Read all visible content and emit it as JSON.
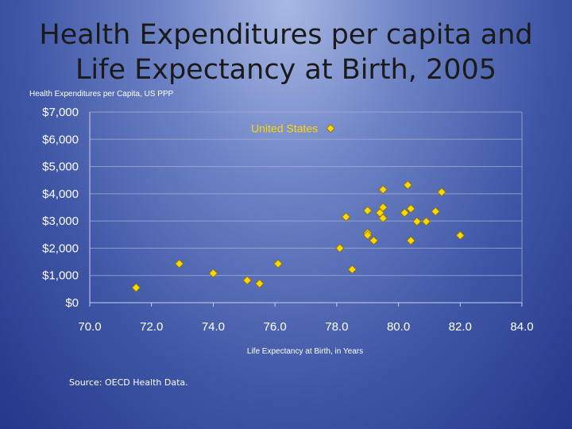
{
  "slide": {
    "title_line1": "Health Expenditures per capita and",
    "title_line2": "Life Expectancy at Birth, 2005",
    "source": "Source: OECD Health Data."
  },
  "chart_data": {
    "type": "scatter",
    "title": "Health Expenditures per capita and Life Expectancy at Birth, 2005",
    "xlabel": "Life Expectancy at Birth, in Years",
    "ylabel": "Health Expenditures per Capita, US PPP",
    "xlim": [
      70,
      84
    ],
    "ylim": [
      0,
      7000
    ],
    "grid": "horizontal",
    "x_ticks": [
      "70.0",
      "72.0",
      "74.0",
      "76.0",
      "78.0",
      "80.0",
      "82.0",
      "84.0"
    ],
    "y_ticks": [
      "$0",
      "$1,000",
      "$2,000",
      "$3,000",
      "$4,000",
      "$5,000",
      "$6,000",
      "$7,000"
    ],
    "annotations": [
      {
        "label": "United States",
        "x": 77.8,
        "y": 6400
      }
    ],
    "marker_color": "#ffd700",
    "points": [
      {
        "x": 71.5,
        "y": 550
      },
      {
        "x": 72.9,
        "y": 1430
      },
      {
        "x": 74.0,
        "y": 1080
      },
      {
        "x": 75.1,
        "y": 820
      },
      {
        "x": 75.5,
        "y": 700
      },
      {
        "x": 76.1,
        "y": 1430
      },
      {
        "x": 77.8,
        "y": 6400
      },
      {
        "x": 78.1,
        "y": 2000
      },
      {
        "x": 78.3,
        "y": 3150
      },
      {
        "x": 78.5,
        "y": 1220
      },
      {
        "x": 79.0,
        "y": 3380
      },
      {
        "x": 79.0,
        "y": 2560
      },
      {
        "x": 79.0,
        "y": 2480
      },
      {
        "x": 79.2,
        "y": 2280
      },
      {
        "x": 79.4,
        "y": 3300
      },
      {
        "x": 79.5,
        "y": 4150
      },
      {
        "x": 79.5,
        "y": 3500
      },
      {
        "x": 79.5,
        "y": 3100
      },
      {
        "x": 80.2,
        "y": 3300
      },
      {
        "x": 80.3,
        "y": 4320
      },
      {
        "x": 80.4,
        "y": 3450
      },
      {
        "x": 80.4,
        "y": 2280
      },
      {
        "x": 80.6,
        "y": 2980
      },
      {
        "x": 80.9,
        "y": 2980
      },
      {
        "x": 81.2,
        "y": 3350
      },
      {
        "x": 81.4,
        "y": 4060
      },
      {
        "x": 82.0,
        "y": 2470
      }
    ]
  }
}
